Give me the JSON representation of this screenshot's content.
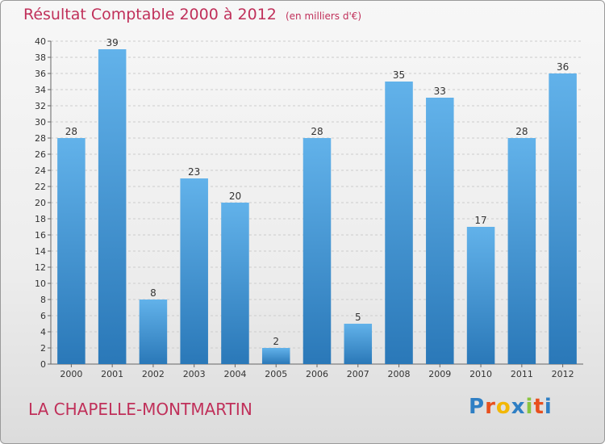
{
  "title": "Résultat Comptable 2000 à 2012",
  "subtitle": "(en milliers d'€)",
  "commune": "LA CHAPELLE-MONTMARTIN",
  "logo": {
    "letters": [
      "P",
      "r",
      "o",
      "x",
      "i",
      "t",
      "i"
    ],
    "colors": [
      "#2f7fc4",
      "#e8501e",
      "#f2b705",
      "#2f7fc4",
      "#8ac43f",
      "#e8501e",
      "#2f7fc4"
    ]
  },
  "colors": {
    "title": "#c0305a",
    "bar_light": "#62b2ea",
    "bar_dark": "#2a78b8",
    "grid": "#cccccc"
  },
  "chart_data": {
    "type": "bar",
    "title": "Résultat Comptable 2000 à 2012",
    "subtitle": "(en milliers d'€)",
    "categories": [
      "2000",
      "2001",
      "2002",
      "2003",
      "2004",
      "2005",
      "2006",
      "2007",
      "2008",
      "2009",
      "2010",
      "2011",
      "2012"
    ],
    "values": [
      28,
      39,
      8,
      23,
      20,
      2,
      28,
      5,
      35,
      33,
      17,
      28,
      36
    ],
    "ylim": [
      0,
      40
    ],
    "yticks": [
      0,
      2,
      4,
      6,
      8,
      10,
      12,
      14,
      16,
      18,
      20,
      22,
      24,
      26,
      28,
      30,
      32,
      34,
      36,
      38,
      40
    ],
    "grid": true,
    "legend": "none"
  }
}
